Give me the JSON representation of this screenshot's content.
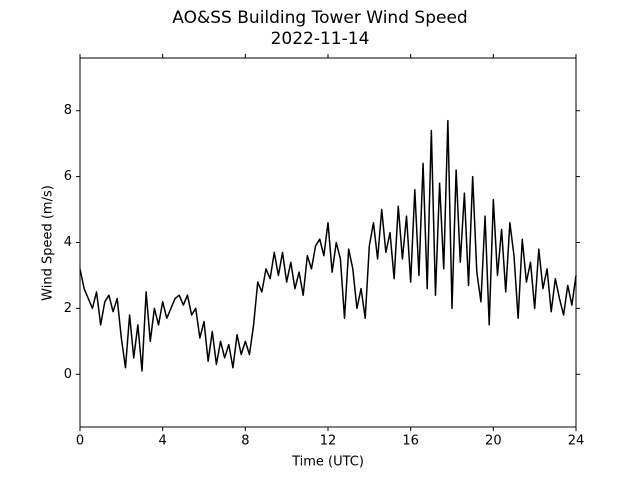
{
  "chart_data": {
    "type": "line",
    "title": "AO&SS Building Tower Wind Speed",
    "subtitle": "2022-11-14",
    "x_label": "Time (UTC)",
    "y_label": "Wind Speed (m/s)",
    "xlim": [
      0,
      24
    ],
    "xticks": [
      0,
      4,
      8,
      12,
      16,
      20,
      24
    ],
    "ylim": [
      -1.6,
      9.6
    ],
    "yticks": [
      0,
      2,
      4,
      6,
      8
    ],
    "x": [
      0,
      0.2,
      0.4,
      0.6,
      0.8,
      1.0,
      1.2,
      1.4,
      1.6,
      1.8,
      2.0,
      2.2,
      2.4,
      2.6,
      2.8,
      3.0,
      3.2,
      3.4,
      3.6,
      3.8,
      4.0,
      4.2,
      4.4,
      4.6,
      4.8,
      5.0,
      5.2,
      5.4,
      5.6,
      5.8,
      6.0,
      6.2,
      6.4,
      6.6,
      6.8,
      7.0,
      7.2,
      7.4,
      7.6,
      7.8,
      8.0,
      8.2,
      8.4,
      8.6,
      8.8,
      9.0,
      9.2,
      9.4,
      9.6,
      9.8,
      10.0,
      10.2,
      10.4,
      10.6,
      10.8,
      11.0,
      11.2,
      11.4,
      11.6,
      11.8,
      12.0,
      12.2,
      12.4,
      12.6,
      12.8,
      13.0,
      13.2,
      13.4,
      13.6,
      13.8,
      14.0,
      14.2,
      14.4,
      14.6,
      14.8,
      15.0,
      15.2,
      15.4,
      15.6,
      15.8,
      16.0,
      16.2,
      16.4,
      16.6,
      16.8,
      17.0,
      17.2,
      17.4,
      17.6,
      17.8,
      18.0,
      18.2,
      18.4,
      18.6,
      18.8,
      19.0,
      19.2,
      19.4,
      19.6,
      19.8,
      20.0,
      20.2,
      20.4,
      20.6,
      20.8,
      21.0,
      21.2,
      21.4,
      21.6,
      21.8,
      22.0,
      22.2,
      22.4,
      22.6,
      22.8,
      23.0,
      23.2,
      23.4,
      23.6,
      23.8,
      24.0
    ],
    "series": [
      {
        "name": "Wind Speed",
        "color": "#000000",
        "values": [
          3.2,
          2.6,
          2.3,
          2.0,
          2.5,
          1.5,
          2.2,
          2.4,
          1.9,
          2.3,
          1.1,
          0.2,
          1.8,
          0.5,
          1.5,
          0.1,
          2.5,
          1.0,
          2.0,
          1.5,
          2.2,
          1.7,
          2.0,
          2.3,
          2.4,
          2.1,
          2.4,
          1.8,
          2.0,
          1.1,
          1.6,
          0.4,
          1.3,
          0.3,
          1.0,
          0.5,
          0.9,
          0.2,
          1.2,
          0.6,
          1.0,
          0.6,
          1.5,
          2.8,
          2.5,
          3.2,
          2.9,
          3.7,
          3.0,
          3.7,
          2.8,
          3.4,
          2.6,
          3.1,
          2.4,
          3.6,
          3.2,
          3.9,
          4.1,
          3.6,
          4.6,
          3.1,
          4.0,
          3.5,
          1.7,
          3.8,
          3.2,
          2.0,
          2.6,
          1.7,
          3.9,
          4.6,
          3.5,
          5.0,
          3.7,
          4.3,
          2.9,
          5.1,
          3.5,
          4.8,
          2.8,
          5.6,
          3.0,
          6.4,
          2.6,
          7.4,
          2.4,
          5.8,
          3.2,
          7.7,
          2.0,
          6.2,
          3.4,
          5.5,
          2.7,
          6.0,
          3.1,
          2.2,
          4.8,
          1.5,
          5.3,
          3.0,
          4.4,
          2.5,
          4.6,
          3.6,
          1.7,
          4.1,
          2.8,
          3.4,
          2.0,
          3.8,
          2.6,
          3.2,
          1.9,
          2.9,
          2.3,
          1.8,
          2.7,
          2.1,
          3.0
        ]
      }
    ]
  }
}
